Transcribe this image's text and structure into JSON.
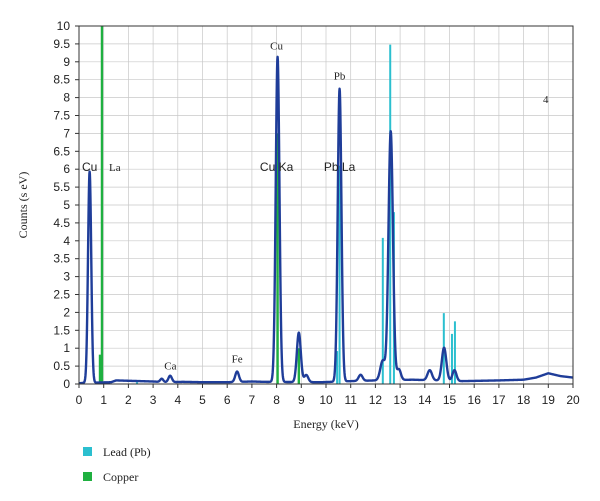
{
  "chart_data": {
    "type": "line",
    "xlabel": "Energy (keV)",
    "ylabel": "Counts (s eV)",
    "xlim": [
      0,
      20
    ],
    "ylim": [
      0,
      10
    ],
    "x_ticks": [
      0,
      1,
      2,
      3,
      4,
      5,
      6,
      7,
      8,
      9,
      10,
      11,
      12,
      13,
      14,
      15,
      16,
      17,
      18,
      19,
      20
    ],
    "y_ticks": [
      "0",
      "0.5",
      "1",
      "1.5",
      "2",
      "2.5",
      "3",
      "3.5",
      "4",
      "4.5",
      "5",
      "5.5",
      "6",
      "6.5",
      "7",
      "7.5",
      "8",
      "8.5",
      "9",
      "9.5",
      "10"
    ],
    "grid": true,
    "legend_position": "bottom-left",
    "panel_label": "4",
    "colors": {
      "spectrum": "#1f3d99",
      "lead": "#2bbfcf",
      "copper": "#1fb040",
      "grid": "#c8c8c8"
    },
    "spectrum": {
      "baseline": [
        [
          0,
          0.02
        ],
        [
          0.15,
          0.03
        ],
        [
          1.3,
          0.05
        ],
        [
          1.5,
          0.1
        ],
        [
          2.0,
          0.09
        ],
        [
          2.5,
          0.08
        ],
        [
          3.0,
          0.07
        ],
        [
          3.6,
          0.05
        ],
        [
          4.2,
          0.06
        ],
        [
          5,
          0.05
        ],
        [
          6,
          0.05
        ],
        [
          7.0,
          0.07
        ],
        [
          7.5,
          0.06
        ],
        [
          9.8,
          0.05
        ],
        [
          11,
          0.08
        ],
        [
          12,
          0.1
        ],
        [
          13.5,
          0.12
        ],
        [
          14.5,
          0.1
        ],
        [
          15.5,
          0.08
        ],
        [
          17,
          0.1
        ],
        [
          18,
          0.12
        ],
        [
          18.5,
          0.18
        ],
        [
          19,
          0.3
        ],
        [
          19.5,
          0.22
        ],
        [
          20,
          0.18
        ]
      ],
      "peaks": [
        {
          "center": 0.43,
          "height": 5.9,
          "width": 0.065
        },
        {
          "center": 3.35,
          "height": 0.09,
          "width": 0.06
        },
        {
          "center": 3.69,
          "height": 0.18,
          "width": 0.07
        },
        {
          "center": 6.4,
          "height": 0.29,
          "width": 0.075
        },
        {
          "center": 8.04,
          "height": 9.08,
          "width": 0.075
        },
        {
          "center": 8.9,
          "height": 1.38,
          "width": 0.08
        },
        {
          "center": 9.2,
          "height": 0.2,
          "width": 0.08
        },
        {
          "center": 10.55,
          "height": 8.18,
          "width": 0.075
        },
        {
          "center": 11.4,
          "height": 0.17,
          "width": 0.08
        },
        {
          "center": 12.3,
          "height": 0.55,
          "width": 0.1
        },
        {
          "center": 12.62,
          "height": 6.95,
          "width": 0.09
        },
        {
          "center": 12.95,
          "height": 0.3,
          "width": 0.08
        },
        {
          "center": 14.2,
          "height": 0.28,
          "width": 0.09
        },
        {
          "center": 14.78,
          "height": 0.92,
          "width": 0.09
        },
        {
          "center": 15.2,
          "height": 0.3,
          "width": 0.08
        }
      ]
    },
    "reference_lines": {
      "copper": [
        {
          "x": 0.85,
          "y": 0.82
        },
        {
          "x": 0.93,
          "y": 10.0
        },
        {
          "x": 8.04,
          "y": 7.0
        },
        {
          "x": 8.9,
          "y": 1.0
        }
      ],
      "lead": [
        {
          "x": 2.35,
          "y": 0.05
        },
        {
          "x": 10.45,
          "y": 0.92
        },
        {
          "x": 10.55,
          "y": 6.1
        },
        {
          "x": 12.3,
          "y": 4.08
        },
        {
          "x": 12.6,
          "y": 9.48
        },
        {
          "x": 12.75,
          "y": 4.8
        },
        {
          "x": 14.77,
          "y": 1.98
        },
        {
          "x": 15.1,
          "y": 1.4
        },
        {
          "x": 15.22,
          "y": 1.75
        }
      ]
    },
    "annotations": [
      {
        "text": "Cu",
        "x": 0.43,
        "y": 5.95,
        "style": "sans"
      },
      {
        "text": "La",
        "x": 1.45,
        "y": 5.95,
        "style": "serif"
      },
      {
        "text": "Ca",
        "x": 3.7,
        "y": 0.4,
        "style": "serif"
      },
      {
        "text": "Fe",
        "x": 6.4,
        "y": 0.6,
        "style": "serif"
      },
      {
        "text": "Cu",
        "x": 8.0,
        "y": 9.35,
        "style": "serif"
      },
      {
        "text": "Cu Ka",
        "x": 8.0,
        "y": 5.95,
        "style": "sans"
      },
      {
        "text": "Pb",
        "x": 10.55,
        "y": 8.5,
        "style": "serif"
      },
      {
        "text": "Pb La",
        "x": 10.55,
        "y": 5.95,
        "style": "sans"
      }
    ],
    "legend": [
      {
        "label": "Lead (Pb)",
        "color": "#2bbfcf"
      },
      {
        "label": "Copper",
        "color": "#1fb040"
      }
    ]
  }
}
